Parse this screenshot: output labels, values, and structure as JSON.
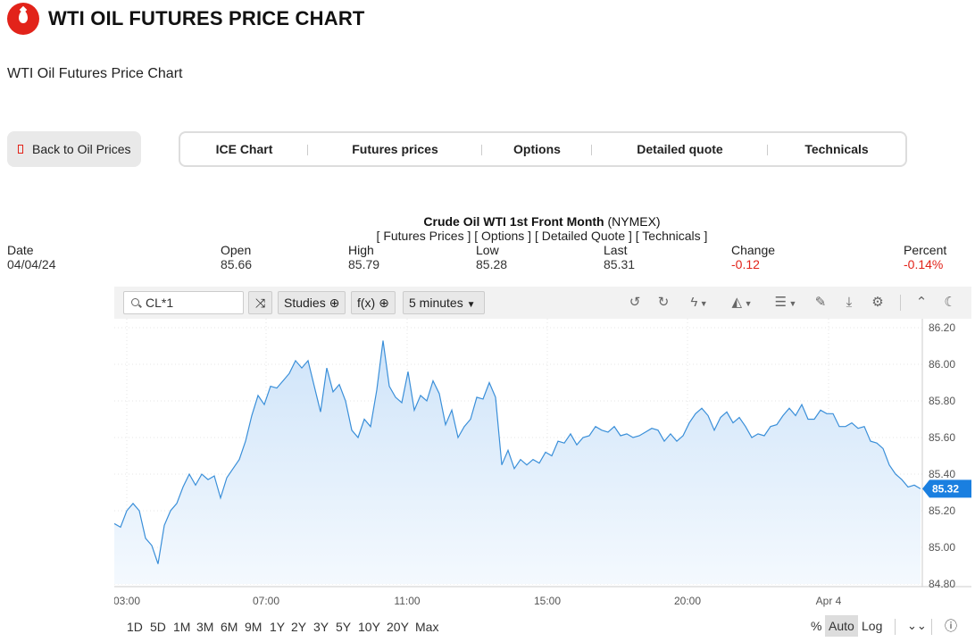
{
  "header": {
    "title": "WTI OIL FUTURES PRICE CHART",
    "subtitle": "WTI Oil Futures Price Chart"
  },
  "back_button": {
    "label": "Back to Oil Prices"
  },
  "nav_tabs": [
    "ICE Chart",
    "Futures prices",
    "Options",
    "Detailed quote",
    "Technicals"
  ],
  "instrument": {
    "name": "Crude Oil WTI 1st Front Month",
    "exchange": "(NYMEX)",
    "links": "[ Futures Prices ] [ Options ] [ Detailed Quote ] [ Technicals ]"
  },
  "quote": {
    "date_label": "Date",
    "date": "04/04/24",
    "open_label": "Open",
    "open": "85.66",
    "high_label": "High",
    "high": "85.79",
    "low_label": "Low",
    "low": "85.28",
    "last_label": "Last",
    "last": "85.31",
    "change_label": "Change",
    "change": "-0.12",
    "percent_label": "Percent",
    "percent": "-0.14%"
  },
  "toolbar": {
    "symbol": "CL*1",
    "studies_label": "Studies",
    "fx_label": "f(x)",
    "interval_label": "5 minutes"
  },
  "range_buttons": [
    "1D",
    "5D",
    "1M",
    "3M",
    "6M",
    "9M",
    "1Y",
    "2Y",
    "3Y",
    "5Y",
    "10Y",
    "20Y",
    "Max"
  ],
  "scale_buttons": {
    "percent": "%",
    "auto": "Auto",
    "log": "Log"
  },
  "colors": {
    "accent": "#e2231a",
    "line": "#3a8fd9",
    "fill": "#d6e9fb",
    "badge": "#1a7fe0",
    "negative": "#e2231a"
  },
  "chart_data": {
    "type": "area",
    "ylim": [
      84.8,
      86.2
    ],
    "yticks": [
      "86.20",
      "86.00",
      "85.80",
      "85.60",
      "85.40",
      "85.20",
      "85.00",
      "84.80"
    ],
    "xticks": [
      "03:00",
      "07:00",
      "11:00",
      "15:00",
      "20:00",
      "Apr 4"
    ],
    "last_value": "85.32",
    "series": [
      {
        "values": [
          85.13,
          85.11,
          85.2,
          85.24,
          85.2,
          85.05,
          85.01,
          84.91,
          85.12,
          85.2,
          85.24,
          85.33,
          85.4,
          85.34,
          85.4,
          85.37,
          85.39,
          85.27,
          85.38,
          85.43,
          85.48,
          85.58,
          85.72,
          85.83,
          85.78,
          85.88,
          85.87,
          85.91,
          85.95,
          86.02,
          85.98,
          86.02,
          85.88,
          85.74,
          85.98,
          85.85,
          85.89,
          85.8,
          85.64,
          85.6,
          85.7,
          85.66,
          85.86,
          86.13,
          85.88,
          85.82,
          85.79,
          85.96,
          85.75,
          85.83,
          85.8,
          85.91,
          85.84,
          85.67,
          85.75,
          85.6,
          85.66,
          85.7,
          85.82,
          85.81,
          85.9,
          85.82,
          85.45,
          85.53,
          85.43,
          85.48,
          85.45,
          85.48,
          85.46,
          85.52,
          85.5,
          85.58,
          85.57,
          85.62,
          85.56,
          85.6,
          85.61,
          85.66,
          85.64,
          85.63,
          85.66,
          85.61,
          85.62,
          85.6,
          85.61,
          85.63,
          85.65,
          85.64,
          85.58,
          85.62,
          85.58,
          85.61,
          85.68,
          85.73,
          85.76,
          85.72,
          85.64,
          85.71,
          85.74,
          85.68,
          85.71,
          85.66,
          85.6,
          85.62,
          85.61,
          85.66,
          85.67,
          85.72,
          85.76,
          85.72,
          85.78,
          85.7,
          85.7,
          85.75,
          85.73,
          85.73,
          85.66,
          85.66,
          85.68,
          85.65,
          85.66,
          85.58,
          85.57,
          85.54,
          85.45,
          85.4,
          85.37,
          85.33,
          85.34,
          85.32
        ]
      }
    ]
  }
}
